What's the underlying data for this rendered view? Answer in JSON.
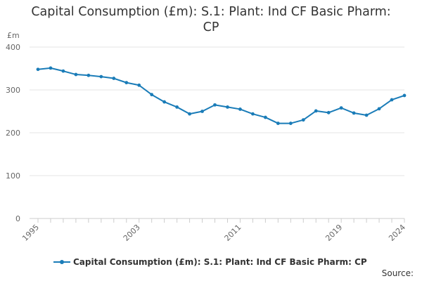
{
  "chart_data": {
    "type": "line",
    "title_lines": [
      "Capital Consumption (£m): S.1: Plant: Ind CF Basic Pharm:",
      "CP"
    ],
    "y_unit": "£m",
    "xlabel": "",
    "ylabel": "£m",
    "x": [
      1995,
      1996,
      1997,
      1998,
      1999,
      2000,
      2001,
      2002,
      2003,
      2004,
      2005,
      2006,
      2007,
      2008,
      2009,
      2010,
      2011,
      2012,
      2013,
      2014,
      2015,
      2016,
      2017,
      2018,
      2019,
      2020,
      2021,
      2022,
      2023,
      2024
    ],
    "series": [
      {
        "name": "Capital Consumption (£m): S.1: Plant: Ind CF Basic Pharm: CP",
        "color": "#1a7cb8",
        "values": [
          348,
          351,
          344,
          336,
          334,
          331,
          327,
          317,
          311,
          289,
          272,
          260,
          244,
          250,
          265,
          260,
          255,
          244,
          236,
          222,
          222,
          230,
          251,
          247,
          258,
          246,
          241,
          256,
          277,
          287
        ]
      }
    ],
    "xticks": [
      "1995",
      "2003",
      "2011",
      "2019",
      "2024"
    ],
    "yticks": [
      0,
      100,
      200,
      300,
      400
    ],
    "ylim": [
      0,
      400
    ],
    "grid": true,
    "legend_position": "bottom"
  },
  "footer": {
    "source_label": "Source:"
  }
}
